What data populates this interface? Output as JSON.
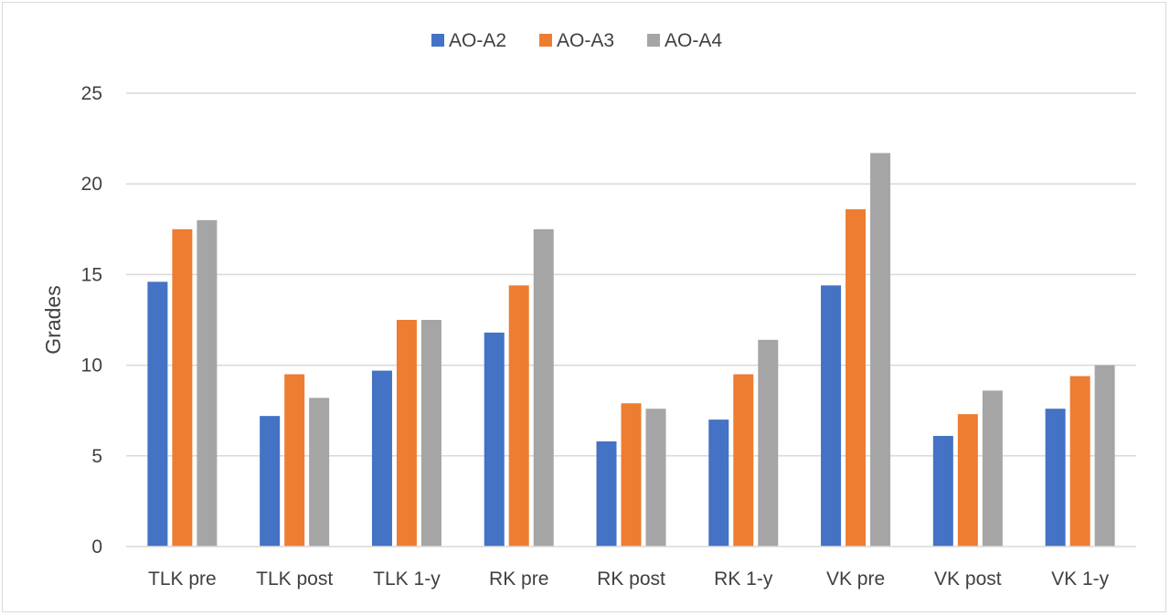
{
  "chart_data": {
    "type": "bar",
    "title": "",
    "xlabel": "",
    "ylabel": "Grades",
    "ylim": [
      0,
      25
    ],
    "yticks": [
      0,
      5,
      10,
      15,
      20,
      25
    ],
    "grid": true,
    "legend_position": "top",
    "categories": [
      "TLK pre",
      "TLK post",
      "TLK 1-y",
      "RK pre",
      "RK post",
      "RK 1-y",
      "VK pre",
      "VK post",
      "VK 1-y"
    ],
    "series": [
      {
        "name": "AO-A2",
        "color": "#4472c4",
        "values": [
          14.6,
          7.2,
          9.7,
          11.8,
          5.8,
          7.0,
          14.4,
          6.1,
          7.6
        ]
      },
      {
        "name": "AO-A3",
        "color": "#ed7d31",
        "values": [
          17.5,
          9.5,
          12.5,
          14.4,
          7.9,
          9.5,
          18.6,
          7.3,
          9.4
        ]
      },
      {
        "name": "AO-A4",
        "color": "#a5a5a5",
        "values": [
          18.0,
          8.2,
          12.5,
          17.5,
          7.6,
          11.4,
          21.7,
          8.6,
          10.0
        ]
      }
    ]
  }
}
